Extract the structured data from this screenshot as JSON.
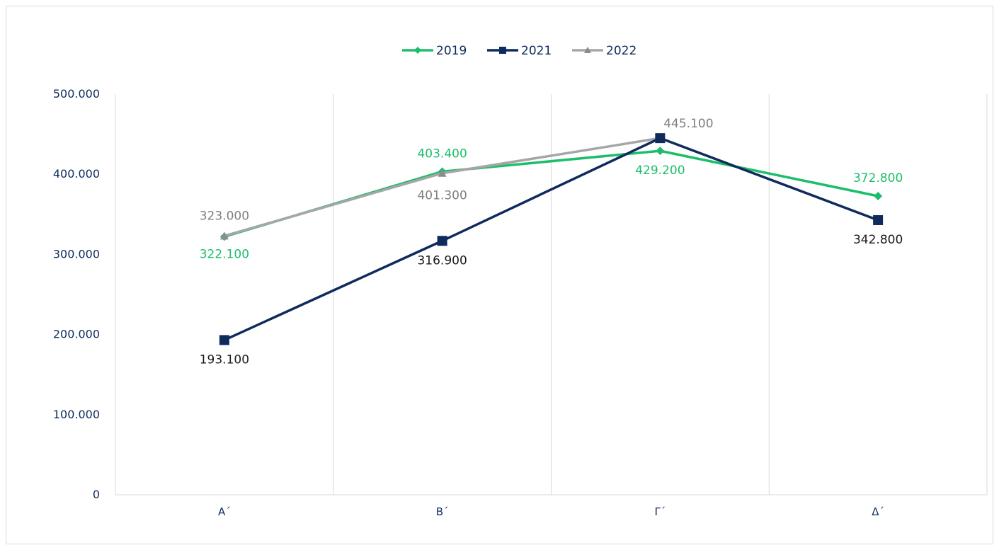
{
  "chart_data": {
    "type": "line",
    "categories": [
      "Α΄",
      "Β΄",
      "Γ΄",
      "Δ΄"
    ],
    "y_ticks": [
      "0",
      "100.000",
      "200.000",
      "300.000",
      "400.000",
      "500.000"
    ],
    "ylim": [
      0,
      500000
    ],
    "grid": "vertical-category",
    "legend_position": "top",
    "series": [
      {
        "name": "2019",
        "values": [
          322100,
          403400,
          429200,
          372800
        ],
        "labels": [
          "322.100",
          "403.400",
          "429.200",
          "372.800"
        ],
        "color": "#1dbe6b",
        "marker": "diamond"
      },
      {
        "name": "2021",
        "values": [
          193100,
          316900,
          445100,
          342800
        ],
        "labels": [
          "193.100",
          "316.900",
          "",
          "342.800"
        ],
        "color": "#0f2a5c",
        "marker": "square"
      },
      {
        "name": "2022",
        "values": [
          323000,
          401300,
          445100,
          null
        ],
        "labels": [
          "323.000",
          "401.300",
          "445.100",
          ""
        ],
        "color": "#a6a6a6",
        "marker": "triangle"
      }
    ],
    "label_colors": {
      "2019": "#1dbe6b",
      "2021": "#1a1a1a",
      "2022": "#7f7f7f"
    }
  }
}
